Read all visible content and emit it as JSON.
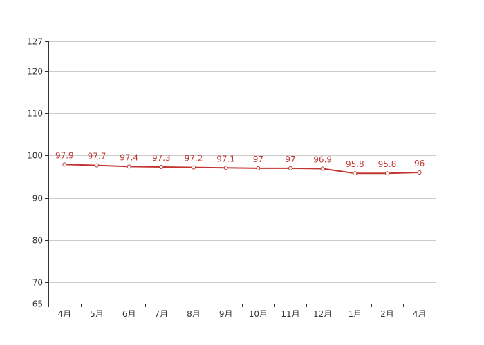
{
  "chart_data": {
    "type": "line",
    "categories": [
      "4月",
      "5月",
      "6月",
      "7月",
      "8月",
      "9月",
      "10月",
      "11月",
      "12月",
      "1月",
      "2月",
      "4月"
    ],
    "series": [
      {
        "values": [
          97.9,
          97.7,
          97.4,
          97.3,
          97.2,
          97.1,
          97,
          97,
          96.9,
          95.8,
          95.8,
          96
        ],
        "data_labels": [
          "97.9",
          "97.7",
          "97.4",
          "97.3",
          "97.2",
          "97.1",
          "97",
          "97",
          "96.9",
          "95.8",
          "95.8",
          "96"
        ],
        "color": "#c23531"
      }
    ],
    "y_ticks": [
      {
        "value": 65,
        "label": "65"
      },
      {
        "value": 70,
        "label": "70"
      },
      {
        "value": 80,
        "label": "80"
      },
      {
        "value": 90,
        "label": "90"
      },
      {
        "value": 100,
        "label": "100"
      },
      {
        "value": 110,
        "label": "110"
      },
      {
        "value": 120,
        "label": "120"
      },
      {
        "value": 127,
        "label": "127"
      }
    ],
    "ylim": [
      65,
      127
    ],
    "grid": true,
    "title": "",
    "xlabel": "",
    "ylabel": ""
  }
}
